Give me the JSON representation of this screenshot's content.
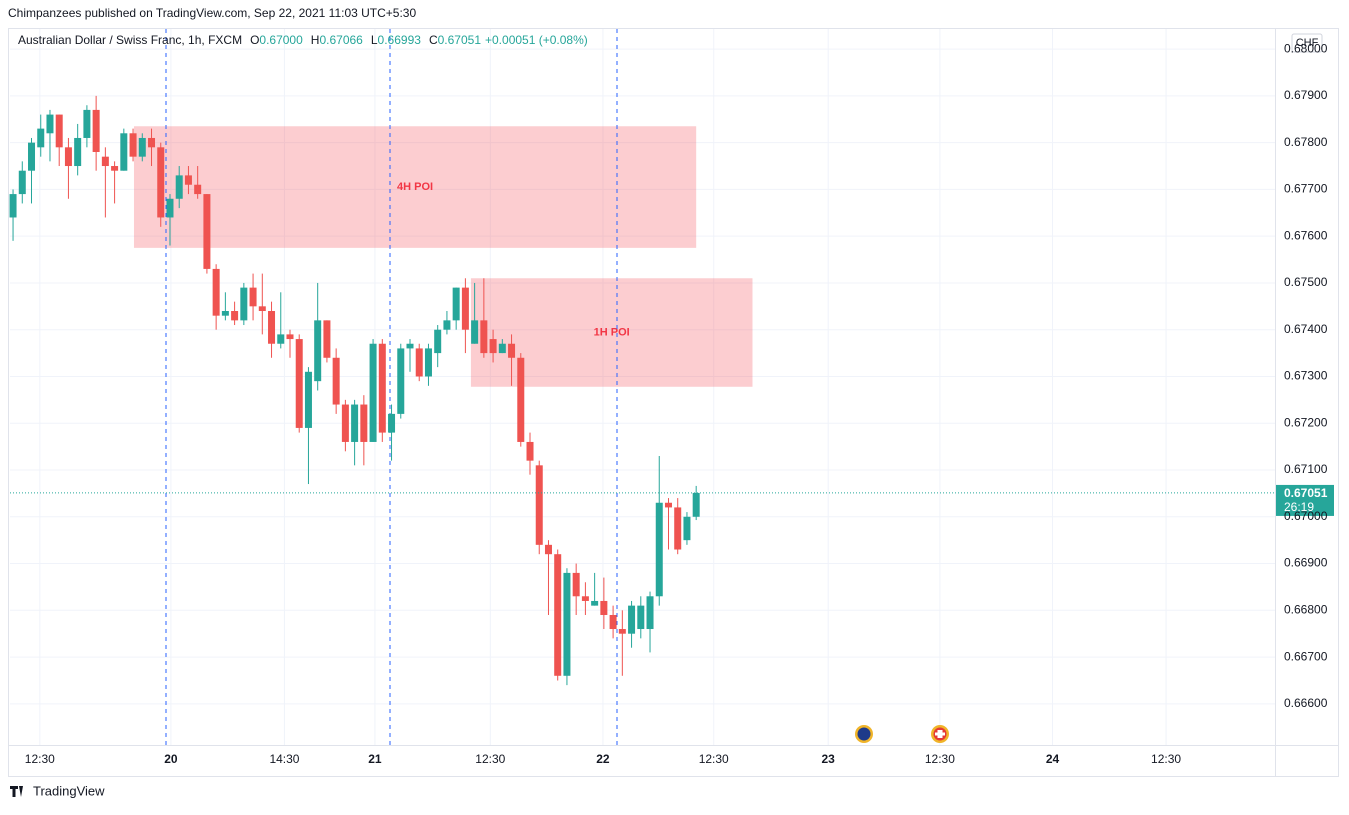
{
  "header": {
    "publisher": "Chimpanzees published on TradingView.com, Sep 22, 2021 11:03 UTC+5:30"
  },
  "footer": {
    "brand": "TradingView"
  },
  "chart_data": {
    "type": "candlestick",
    "title": "Australian Dollar / Swiss Franc, 1h, FXCM",
    "legend_items": [
      {
        "key": "O",
        "value": "0.67000"
      },
      {
        "key": "H",
        "value": "0.67066"
      },
      {
        "key": "L",
        "value": "0.66993"
      },
      {
        "key": "C",
        "value": "0.67051"
      }
    ],
    "change": "+0.00051 (+0.08%)",
    "currency": "CHF",
    "up_color": "#26a69a",
    "down_color": "#ef5350",
    "x": [
      0,
      1,
      2,
      3,
      4,
      5,
      6,
      7,
      8,
      9,
      10,
      11,
      12,
      13,
      14,
      15,
      16,
      17,
      18,
      19,
      20,
      21,
      22,
      23,
      24,
      25,
      26,
      27,
      28,
      29,
      30,
      31,
      32,
      33,
      34,
      35,
      36,
      37,
      38,
      39,
      40,
      41,
      42,
      43,
      44,
      45,
      46,
      47,
      48,
      49,
      50,
      51,
      52,
      53,
      54,
      55,
      56,
      57,
      58,
      59,
      60,
      61,
      62,
      63,
      64,
      65,
      66,
      67,
      68,
      69,
      70,
      71,
      72,
      73,
      74
    ],
    "open": [
      0.6764,
      0.6769,
      0.6774,
      0.6779,
      0.6782,
      0.6786,
      0.6779,
      0.6775,
      0.6781,
      0.6787,
      0.6777,
      0.6775,
      0.6774,
      0.6782,
      0.6777,
      0.6781,
      0.6779,
      0.6764,
      0.6768,
      0.6773,
      0.6771,
      0.6769,
      0.6753,
      0.6743,
      0.6744,
      0.6742,
      0.6749,
      0.6745,
      0.6744,
      0.6737,
      0.6739,
      0.6738,
      0.6719,
      0.6729,
      0.6742,
      0.6734,
      0.6724,
      0.6716,
      0.6724,
      0.6716,
      0.6737,
      0.6718,
      0.6722,
      0.6736,
      0.6736,
      0.673,
      0.6735,
      0.674,
      0.6742,
      0.6749,
      0.6737,
      0.6742,
      0.6738,
      0.6735,
      0.6737,
      0.6734,
      0.6716,
      0.6711,
      0.6694,
      0.6692,
      0.6666,
      0.6688,
      0.6683,
      0.6681,
      0.6682,
      0.6679,
      0.6676,
      0.6675,
      0.6676,
      0.6676,
      0.6683,
      0.6703,
      0.6702,
      0.6695,
      0.67
    ],
    "high": [
      0.677,
      0.6776,
      0.6781,
      0.6786,
      0.6787,
      0.6786,
      0.6781,
      0.6784,
      0.6788,
      0.679,
      0.6779,
      0.6776,
      0.6783,
      0.6783,
      0.6782,
      0.6783,
      0.678,
      0.6769,
      0.6775,
      0.6775,
      0.6775,
      0.6769,
      0.6754,
      0.6748,
      0.6746,
      0.675,
      0.6752,
      0.6752,
      0.6746,
      0.6748,
      0.674,
      0.6739,
      0.6732,
      0.675,
      0.6742,
      0.6736,
      0.6725,
      0.6725,
      0.6726,
      0.6738,
      0.6738,
      0.6724,
      0.6737,
      0.6738,
      0.6737,
      0.6737,
      0.6741,
      0.6744,
      0.6749,
      0.6751,
      0.675,
      0.6751,
      0.674,
      0.6738,
      0.6739,
      0.6735,
      0.6718,
      0.6712,
      0.6695,
      0.6693,
      0.6689,
      0.669,
      0.6686,
      0.6688,
      0.6687,
      0.6681,
      0.668,
      0.6682,
      0.6683,
      0.6684,
      0.6713,
      0.6704,
      0.6704,
      0.6701,
      0.67066
    ],
    "low": [
      0.6759,
      0.6767,
      0.6767,
      0.6777,
      0.6776,
      0.6775,
      0.6768,
      0.6773,
      0.6779,
      0.6774,
      0.6764,
      0.6767,
      0.6774,
      0.6776,
      0.6776,
      0.6775,
      0.6762,
      0.6758,
      0.6766,
      0.6769,
      0.6768,
      0.6752,
      0.674,
      0.6742,
      0.6741,
      0.6741,
      0.6742,
      0.6739,
      0.6734,
      0.6736,
      0.6734,
      0.6718,
      0.6707,
      0.6727,
      0.6733,
      0.6722,
      0.6714,
      0.6711,
      0.6711,
      0.6716,
      0.6716,
      0.6712,
      0.6721,
      0.6731,
      0.6729,
      0.6728,
      0.6732,
      0.6739,
      0.674,
      0.6735,
      0.6737,
      0.6734,
      0.6733,
      0.6735,
      0.6728,
      0.6715,
      0.6709,
      0.6692,
      0.6679,
      0.6665,
      0.6664,
      0.6679,
      0.6679,
      0.6681,
      0.6676,
      0.6674,
      0.6666,
      0.6672,
      0.6674,
      0.6671,
      0.6681,
      0.6693,
      0.6692,
      0.6694,
      0.66993
    ],
    "close": [
      0.6769,
      0.6774,
      0.678,
      0.6783,
      0.6786,
      0.6779,
      0.6775,
      0.6781,
      0.6787,
      0.6778,
      0.6775,
      0.6774,
      0.6782,
      0.6777,
      0.6781,
      0.6779,
      0.6764,
      0.6768,
      0.6773,
      0.6771,
      0.6769,
      0.6753,
      0.6743,
      0.6744,
      0.6742,
      0.6749,
      0.6745,
      0.6744,
      0.6737,
      0.6739,
      0.6738,
      0.6719,
      0.6731,
      0.6742,
      0.6734,
      0.6724,
      0.6716,
      0.6724,
      0.6716,
      0.6737,
      0.6718,
      0.6722,
      0.6736,
      0.6737,
      0.673,
      0.6736,
      0.674,
      0.6742,
      0.6749,
      0.674,
      0.6742,
      0.6735,
      0.6735,
      0.6737,
      0.6734,
      0.6716,
      0.6712,
      0.6694,
      0.6692,
      0.6666,
      0.6688,
      0.6683,
      0.6682,
      0.6682,
      0.6679,
      0.6676,
      0.6675,
      0.6681,
      0.6681,
      0.6683,
      0.6703,
      0.6702,
      0.6693,
      0.67,
      0.67051
    ],
    "xlim": [
      -0.33,
      136.7
    ],
    "ylim": [
      0.66512,
      0.68043
    ],
    "xticks": [
      {
        "value": 2.9,
        "label": "12:30"
      },
      {
        "value": 17.1,
        "label": "20"
      },
      {
        "value": 29.4,
        "label": "14:30"
      },
      {
        "value": 39.2,
        "label": "21"
      },
      {
        "value": 51.7,
        "label": "12:30"
      },
      {
        "value": 63.9,
        "label": "22"
      },
      {
        "value": 75.9,
        "label": "12:30"
      },
      {
        "value": 88.3,
        "label": "23"
      },
      {
        "value": 100.4,
        "label": "12:30"
      },
      {
        "value": 112.6,
        "label": "24"
      },
      {
        "value": 124.9,
        "label": "12:30"
      }
    ],
    "yticks": [
      {
        "value": 0.666,
        "label": "0.66600"
      },
      {
        "value": 0.667,
        "label": "0.66700"
      },
      {
        "value": 0.668,
        "label": "0.66800"
      },
      {
        "value": 0.669,
        "label": "0.66900"
      },
      {
        "value": 0.67,
        "label": "0.67000"
      },
      {
        "value": 0.671,
        "label": "0.67100"
      },
      {
        "value": 0.672,
        "label": "0.67200"
      },
      {
        "value": 0.673,
        "label": "0.67300"
      },
      {
        "value": 0.674,
        "label": "0.67400"
      },
      {
        "value": 0.675,
        "label": "0.67500"
      },
      {
        "value": 0.676,
        "label": "0.67600"
      },
      {
        "value": 0.677,
        "label": "0.67700"
      },
      {
        "value": 0.678,
        "label": "0.67800"
      },
      {
        "value": 0.679,
        "label": "0.67900"
      },
      {
        "value": 0.68,
        "label": "0.68000"
      }
    ],
    "grid": true,
    "zones": [
      {
        "label": "4H POI",
        "x": [
          13.1,
          74
        ],
        "y": [
          0.67575,
          0.67835
        ]
      },
      {
        "label": "1H POI",
        "x": [
          49.6,
          80.1
        ],
        "y": [
          0.67278,
          0.6751
        ]
      }
    ],
    "last_price_label": "0.67051",
    "countdown": "26:19"
  }
}
